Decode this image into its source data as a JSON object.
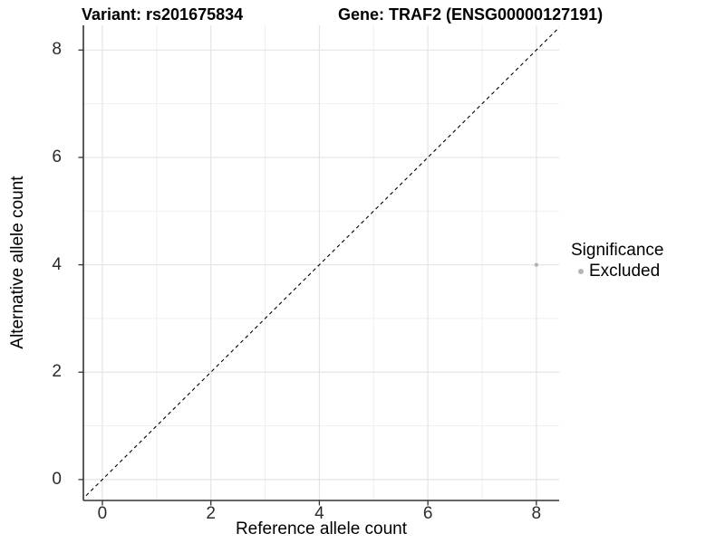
{
  "chart_data": {
    "type": "scatter",
    "title_left": "Variant: rs201675834",
    "title_right": "Gene: TRAF2 (ENSG00000127191)",
    "xlabel": "Reference allele count",
    "ylabel": "Alternative allele count",
    "x_ticks": [
      0,
      2,
      4,
      6,
      8
    ],
    "y_ticks": [
      0,
      2,
      4,
      6,
      8
    ],
    "x_minor_ticks": [
      1,
      3,
      5,
      7
    ],
    "y_minor_ticks": [
      1,
      3,
      5,
      7
    ],
    "xlim": [
      -0.35,
      8.42
    ],
    "ylim": [
      -0.39,
      8.46
    ],
    "grid": true,
    "legend_position": "right",
    "reference_line": {
      "kind": "identity",
      "equation": "y = x",
      "style": "dashed",
      "color": "#000000"
    },
    "series": [
      {
        "name": "Excluded",
        "color": "#b4b4b4",
        "points": [
          {
            "x": 8,
            "y": 4
          }
        ]
      }
    ],
    "legend": {
      "title": "Significance",
      "entries": [
        {
          "label": "Excluded",
          "color": "#b4b4b4"
        }
      ]
    },
    "colors": {
      "grid_major": "#e4e4e4",
      "grid_minor": "#efefef",
      "axis": "#333333",
      "tick_label": "#2b2b2b",
      "background": "#ffffff"
    }
  }
}
